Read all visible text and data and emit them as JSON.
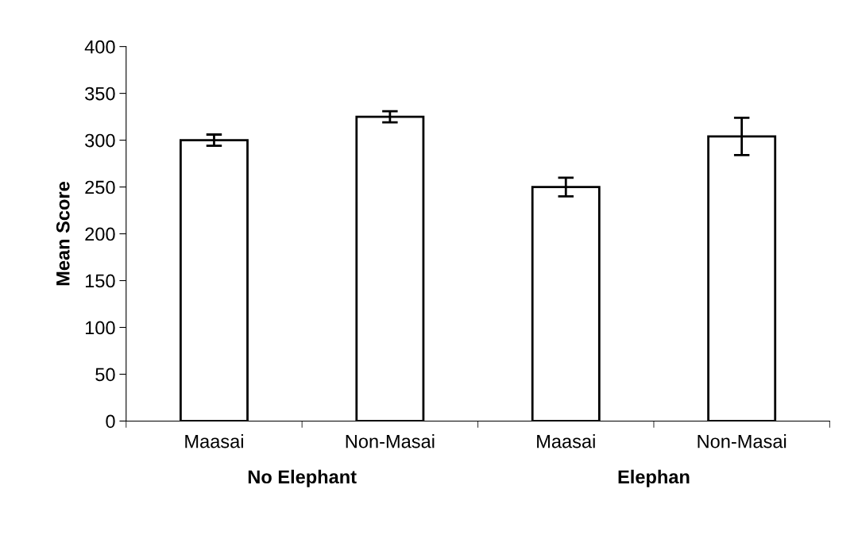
{
  "chart_data": {
    "type": "bar",
    "ylabel": "Mean Score",
    "categories": [
      "Maasai",
      "Non-Masai",
      "Maasai",
      "Non-Masai"
    ],
    "values": [
      300,
      325,
      250,
      304
    ],
    "errors": [
      6,
      6,
      10,
      20
    ],
    "color": "#ffffff",
    "ylim": [
      0,
      400
    ],
    "yticks": [
      0,
      50,
      100,
      150,
      200,
      250,
      300,
      350,
      400
    ],
    "grid": false,
    "annotations": [
      "No Elephant",
      "Elephan"
    ]
  }
}
